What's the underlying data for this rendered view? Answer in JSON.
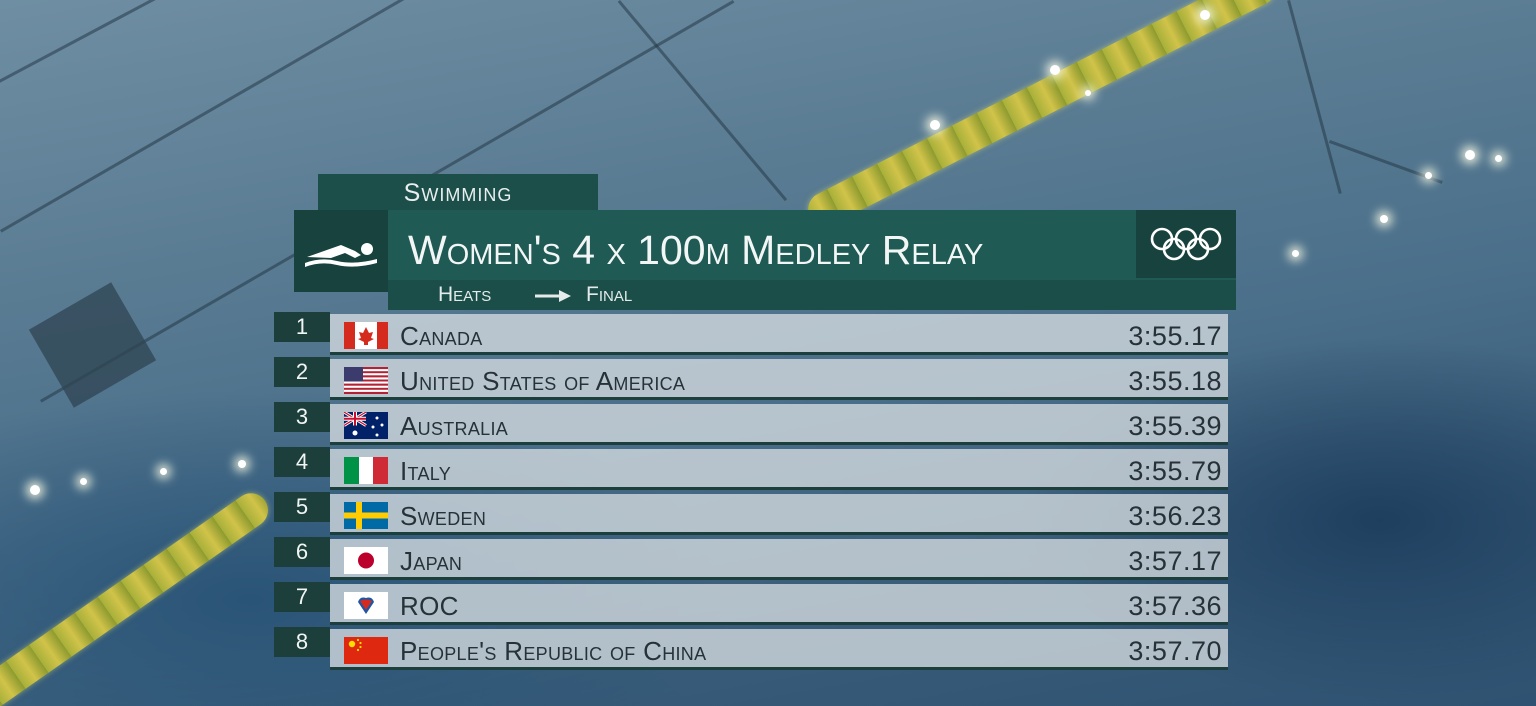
{
  "graphic": {
    "discipline": "Swimming",
    "event_title": "Women's 4 x 100m Medley Relay",
    "phase_from": "Heats",
    "phase_to": "Final",
    "sport_icon": "swimmer-icon",
    "logo": "olympic-rings-icon",
    "colors": {
      "header_teal": "#1f5a55",
      "dark_teal": "#17423e",
      "row_bg": "#d2dade",
      "text_dark": "#263238"
    }
  },
  "results": [
    {
      "rank": "1",
      "country": "Canada",
      "flag": "canada-flag-icon",
      "time": "3:55.17"
    },
    {
      "rank": "2",
      "country": "United States of America",
      "flag": "usa-flag-icon",
      "time": "3:55.18"
    },
    {
      "rank": "3",
      "country": "Australia",
      "flag": "australia-flag-icon",
      "time": "3:55.39"
    },
    {
      "rank": "4",
      "country": "Italy",
      "flag": "italy-flag-icon",
      "time": "3:55.79"
    },
    {
      "rank": "5",
      "country": "Sweden",
      "flag": "sweden-flag-icon",
      "time": "3:56.23"
    },
    {
      "rank": "6",
      "country": "Japan",
      "flag": "japan-flag-icon",
      "time": "3:57.17"
    },
    {
      "rank": "7",
      "country": "ROC",
      "flag": "roc-flag-icon",
      "time": "3:57.36"
    },
    {
      "rank": "8",
      "country": "People's Republic of China",
      "flag": "china-flag-icon",
      "time": "3:57.70"
    }
  ]
}
